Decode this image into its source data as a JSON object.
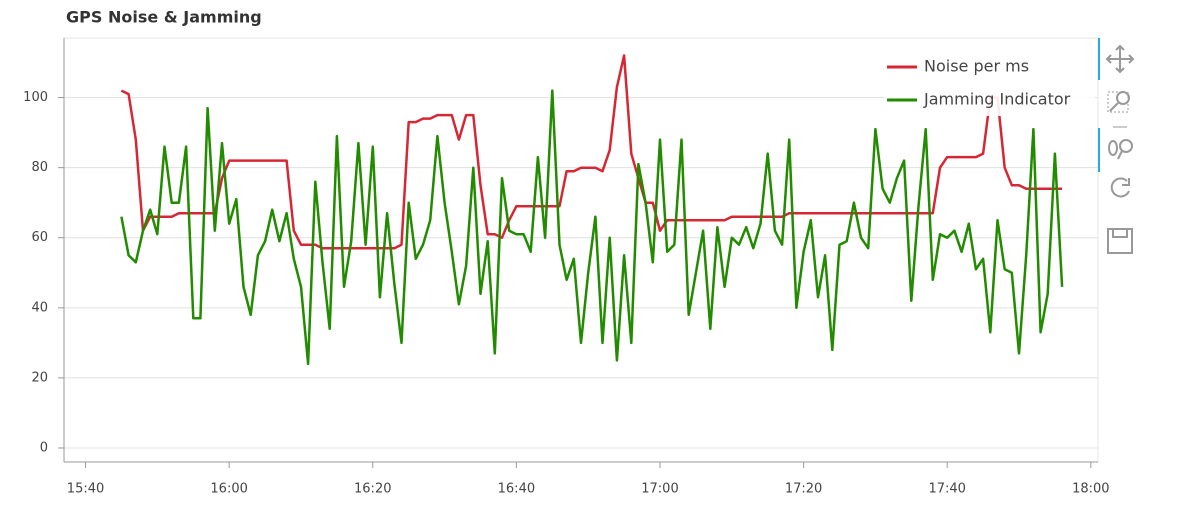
{
  "chart_data": {
    "type": "line",
    "title": "GPS Noise & Jamming",
    "x": [
      "15:45",
      "15:46",
      "15:47",
      "15:48",
      "15:49",
      "15:50",
      "15:51",
      "15:52",
      "15:53",
      "15:54",
      "15:55",
      "15:56",
      "15:57",
      "15:58",
      "15:59",
      "16:00",
      "16:01",
      "16:02",
      "16:03",
      "16:04",
      "16:05",
      "16:06",
      "16:07",
      "16:08",
      "16:09",
      "16:10",
      "16:11",
      "16:12",
      "16:13",
      "16:14",
      "16:15",
      "16:16",
      "16:17",
      "16:18",
      "16:19",
      "16:20",
      "16:21",
      "16:22",
      "16:23",
      "16:24",
      "16:25",
      "16:26",
      "16:27",
      "16:28",
      "16:29",
      "16:30",
      "16:31",
      "16:32",
      "16:33",
      "16:34",
      "16:35",
      "16:36",
      "16:37",
      "16:38",
      "16:39",
      "16:40",
      "16:41",
      "16:42",
      "16:43",
      "16:44",
      "16:45",
      "16:46",
      "16:47",
      "16:48",
      "16:49",
      "16:50",
      "16:51",
      "16:52",
      "16:53",
      "16:54",
      "16:55",
      "16:56",
      "16:57",
      "16:58",
      "16:59",
      "17:00",
      "17:01",
      "17:02",
      "17:03",
      "17:04",
      "17:05",
      "17:06",
      "17:07",
      "17:08",
      "17:09",
      "17:10",
      "17:11",
      "17:12",
      "17:13",
      "17:14",
      "17:15",
      "17:16",
      "17:17",
      "17:18",
      "17:19",
      "17:20",
      "17:21",
      "17:22",
      "17:23",
      "17:24",
      "17:25",
      "17:26",
      "17:27",
      "17:28",
      "17:29",
      "17:30",
      "17:31",
      "17:32",
      "17:33",
      "17:34",
      "17:35",
      "17:36",
      "17:37",
      "17:38",
      "17:39",
      "17:40",
      "17:41",
      "17:42",
      "17:43",
      "17:44",
      "17:45",
      "17:46",
      "17:47",
      "17:48",
      "17:49",
      "17:50",
      "17:51",
      "17:52",
      "17:53",
      "17:54",
      "17:55",
      "17:56"
    ],
    "series": [
      {
        "name": "Noise per ms",
        "color": "#d62734",
        "values": [
          102,
          101,
          88,
          62,
          66,
          66,
          66,
          66,
          67,
          67,
          67,
          67,
          67,
          67,
          77,
          82,
          82,
          82,
          82,
          82,
          82,
          82,
          82,
          82,
          62,
          58,
          58,
          58,
          57,
          57,
          57,
          57,
          57,
          57,
          57,
          57,
          57,
          57,
          57,
          58,
          93,
          93,
          94,
          94,
          95,
          95,
          95,
          88,
          95,
          95,
          75,
          61,
          61,
          60,
          65,
          69,
          69,
          69,
          69,
          69,
          69,
          69,
          79,
          79,
          80,
          80,
          80,
          79,
          85,
          103,
          112,
          84,
          77,
          70,
          70,
          62,
          65,
          65,
          65,
          65,
          65,
          65,
          65,
          65,
          65,
          66,
          66,
          66,
          66,
          66,
          66,
          66,
          66,
          67,
          67,
          67,
          67,
          67,
          67,
          67,
          67,
          67,
          67,
          67,
          67,
          67,
          67,
          67,
          67,
          67,
          67,
          67,
          67,
          67,
          80,
          83,
          83,
          83,
          83,
          83,
          84,
          100,
          100,
          80,
          75,
          75,
          74,
          74,
          74,
          74,
          74,
          74
        ]
      },
      {
        "name": "Jamming Indicator",
        "color": "#228b00",
        "values": [
          66,
          55,
          53,
          62,
          68,
          61,
          86,
          70,
          70,
          86,
          37,
          37,
          97,
          62,
          87,
          64,
          71,
          46,
          38,
          55,
          59,
          68,
          59,
          67,
          54,
          46,
          24,
          76,
          53,
          34,
          89,
          46,
          59,
          87,
          58,
          86,
          43,
          67,
          47,
          30,
          70,
          54,
          58,
          65,
          89,
          70,
          56,
          41,
          52,
          80,
          44,
          59,
          27,
          77,
          62,
          61,
          61,
          56,
          83,
          60,
          102,
          58,
          48,
          54,
          30,
          50,
          66,
          30,
          60,
          25,
          55,
          30,
          81,
          70,
          53,
          88,
          56,
          58,
          88,
          38,
          50,
          62,
          34,
          63,
          46,
          60,
          58,
          63,
          57,
          64,
          84,
          62,
          58,
          88,
          40,
          56,
          65,
          43,
          55,
          28,
          58,
          59,
          70,
          60,
          57,
          91,
          74,
          70,
          77,
          82,
          42,
          69,
          91,
          48,
          61,
          60,
          62,
          56,
          64,
          51,
          54,
          33,
          65,
          51,
          50,
          27,
          55,
          91,
          33,
          44,
          84,
          46
        ]
      }
    ],
    "xlim": [
      "15:37",
      "18:01"
    ],
    "xticks": [
      "15:40",
      "16:00",
      "16:20",
      "16:40",
      "17:00",
      "17:20",
      "17:40",
      "18:00"
    ],
    "ylim": [
      -4,
      117
    ],
    "yticks": [
      0,
      20,
      40,
      60,
      80,
      100
    ],
    "grid": true,
    "legend": "top-right"
  }
}
